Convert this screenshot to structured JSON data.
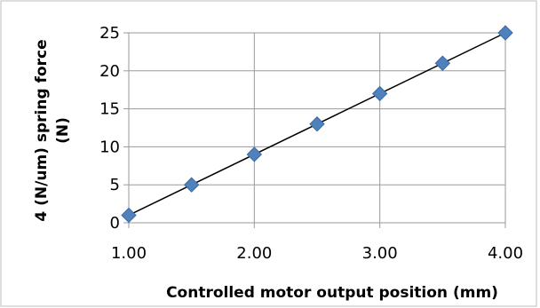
{
  "chart_data": {
    "type": "scatter",
    "xlabel": "Controlled motor output position (mm)",
    "ylabel_lines": [
      "4 (N/um)  spring force",
      "(N)"
    ],
    "xlim": [
      1.0,
      4.0
    ],
    "ylim": [
      0,
      25
    ],
    "x_ticks": [
      "1.00",
      "2.00",
      "3.00",
      "4.00"
    ],
    "x_tick_values": [
      1.0,
      2.0,
      3.0,
      4.0
    ],
    "y_ticks": [
      "0",
      "5",
      "10",
      "15",
      "20",
      "25"
    ],
    "y_tick_values": [
      0,
      5,
      10,
      15,
      20,
      25
    ],
    "grid": true,
    "marker": "diamond",
    "trendline": "linear",
    "points": [
      {
        "x": 1.0,
        "y": 1
      },
      {
        "x": 1.5,
        "y": 5
      },
      {
        "x": 2.0,
        "y": 9
      },
      {
        "x": 2.5,
        "y": 13
      },
      {
        "x": 3.0,
        "y": 17
      },
      {
        "x": 3.5,
        "y": 21
      },
      {
        "x": 4.0,
        "y": 25
      }
    ],
    "colors": {
      "marker": "#4f81bd",
      "marker_edge": "#3a6aa3",
      "trendline": "#000000",
      "grid": "#9a9a9a",
      "frame": "#bdbdbd"
    }
  }
}
